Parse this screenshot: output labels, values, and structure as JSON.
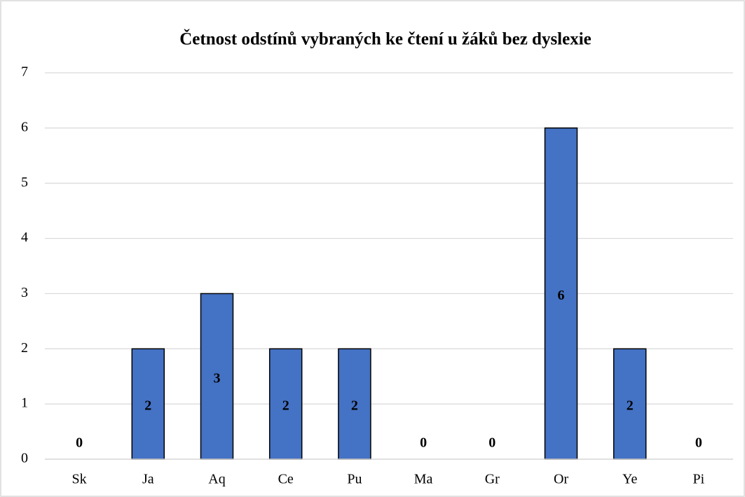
{
  "chart_data": {
    "type": "bar",
    "title": "Četnost odstínů vybraných ke čtení u žáků bez dyslexie",
    "categories": [
      "Sk",
      "Ja",
      "Aq",
      "Ce",
      "Pu",
      "Ma",
      "Gr",
      "Or",
      "Ye",
      "Pi"
    ],
    "values": [
      0,
      2,
      3,
      2,
      2,
      0,
      0,
      6,
      2,
      0
    ],
    "color": "#4472c4",
    "ylim": [
      0,
      7
    ],
    "yticks": [
      0,
      1,
      2,
      3,
      4,
      5,
      6,
      7
    ],
    "grid": true,
    "data_labels": true
  }
}
